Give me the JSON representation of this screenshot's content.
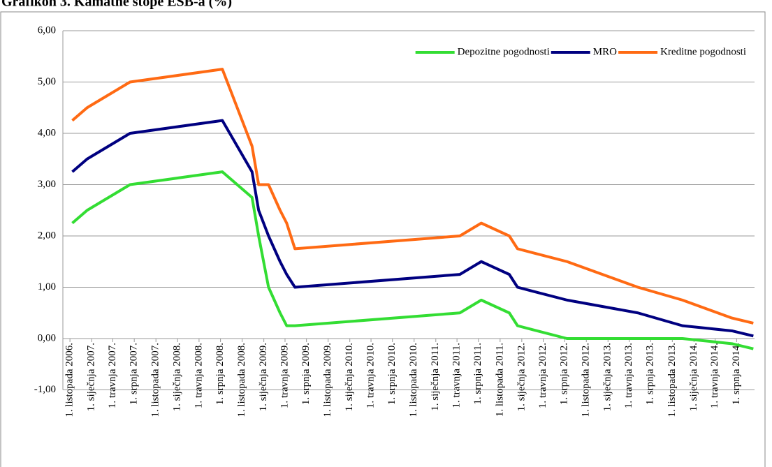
{
  "chart_data": {
    "type": "line",
    "title": "Grafikon 3. Kamatne stope ESB-a (%)",
    "x": [
      "2006-10-11",
      "2006-12-13",
      "2007-03-14",
      "2007-06-13",
      "2008-07-09",
      "2008-11-12",
      "2008-12-10",
      "2009-01-21",
      "2009-03-11",
      "2009-04-08",
      "2009-05-13",
      "2011-04-13",
      "2011-07-13",
      "2011-11-09",
      "2011-12-14",
      "2012-07-11",
      "2013-05-08",
      "2013-11-13",
      "2014-06-11",
      "2014-09-10"
    ],
    "series": [
      {
        "name": "Depozitne pogodnosti",
        "color": "#33dd33",
        "values": [
          2.25,
          2.5,
          2.75,
          3.0,
          3.25,
          2.75,
          2.0,
          1.0,
          0.5,
          0.25,
          0.25,
          0.5,
          0.75,
          0.5,
          0.25,
          0.0,
          0.0,
          0.0,
          -0.1,
          -0.2
        ]
      },
      {
        "name": "MRO",
        "color": "#000080",
        "values": [
          3.25,
          3.5,
          3.75,
          4.0,
          4.25,
          3.25,
          2.5,
          2.0,
          1.5,
          1.25,
          1.0,
          1.25,
          1.5,
          1.25,
          1.0,
          0.75,
          0.5,
          0.25,
          0.15,
          0.05
        ]
      },
      {
        "name": "Kreditne pogodnosti",
        "color": "#ff6a13",
        "values": [
          4.25,
          4.5,
          4.75,
          5.0,
          5.25,
          3.75,
          3.0,
          3.0,
          2.5,
          2.25,
          1.75,
          2.0,
          2.25,
          2.0,
          1.75,
          1.5,
          1.0,
          0.75,
          0.4,
          0.3
        ]
      }
    ],
    "xlim": [
      "2006-09-01",
      "2014-09-15"
    ],
    "xticks": [
      {
        "value": "2006-10-01",
        "label": "1. listopada 2006."
      },
      {
        "value": "2007-01-01",
        "label": "1. siječnja 2007."
      },
      {
        "value": "2007-04-01",
        "label": "1. travnja 2007."
      },
      {
        "value": "2007-07-01",
        "label": "1. srpnja 2007."
      },
      {
        "value": "2007-10-01",
        "label": "1. listopada 2007."
      },
      {
        "value": "2008-01-01",
        "label": "1. siječnja 2008."
      },
      {
        "value": "2008-04-01",
        "label": "1. travnja 2008."
      },
      {
        "value": "2008-07-01",
        "label": "1. srpnja 2008."
      },
      {
        "value": "2008-10-01",
        "label": "1. listopada 2008."
      },
      {
        "value": "2009-01-01",
        "label": "1. siječnja 2009."
      },
      {
        "value": "2009-04-01",
        "label": "1. travnja 2009."
      },
      {
        "value": "2009-07-01",
        "label": "1. srpnja 2009."
      },
      {
        "value": "2009-10-01",
        "label": "1. listopada 2009."
      },
      {
        "value": "2010-01-01",
        "label": "1. siječnja 2010."
      },
      {
        "value": "2010-04-01",
        "label": "1. travnja 2010."
      },
      {
        "value": "2010-07-01",
        "label": "1. srpnja 2010."
      },
      {
        "value": "2010-10-01",
        "label": "1. listopada 2010."
      },
      {
        "value": "2011-01-01",
        "label": "1. siječnja 2011."
      },
      {
        "value": "2011-04-01",
        "label": "1. travnja 2011."
      },
      {
        "value": "2011-07-01",
        "label": "1. srpnja 2011."
      },
      {
        "value": "2011-10-01",
        "label": "1. listopada 2011."
      },
      {
        "value": "2012-01-01",
        "label": "1. siječnja 2012."
      },
      {
        "value": "2012-04-01",
        "label": "1. travnja 2012."
      },
      {
        "value": "2012-07-01",
        "label": "1. srpnja 2012."
      },
      {
        "value": "2012-10-01",
        "label": "1. listopada 2012."
      },
      {
        "value": "2013-01-01",
        "label": "1. siječnja 2013."
      },
      {
        "value": "2013-04-01",
        "label": "1. travnja 2013."
      },
      {
        "value": "2013-07-01",
        "label": "1. srpnja 2013."
      },
      {
        "value": "2013-10-01",
        "label": "1. listopada 2013."
      },
      {
        "value": "2014-01-01",
        "label": "1. siječnja 2014."
      },
      {
        "value": "2014-04-01",
        "label": "1. travnja 2014."
      },
      {
        "value": "2014-07-01",
        "label": "1. srpnja 2014."
      }
    ],
    "ylim": [
      -1,
      6
    ],
    "yticks": [
      {
        "value": -1,
        "label": "-1,00"
      },
      {
        "value": 0,
        "label": "0,00"
      },
      {
        "value": 1,
        "label": "1,00"
      },
      {
        "value": 2,
        "label": "2,00"
      },
      {
        "value": 3,
        "label": "3,00"
      },
      {
        "value": 4,
        "label": "4,00"
      },
      {
        "value": 5,
        "label": "5,00"
      },
      {
        "value": 6,
        "label": "6,00"
      }
    ],
    "grid": true,
    "legend": "top-right"
  }
}
